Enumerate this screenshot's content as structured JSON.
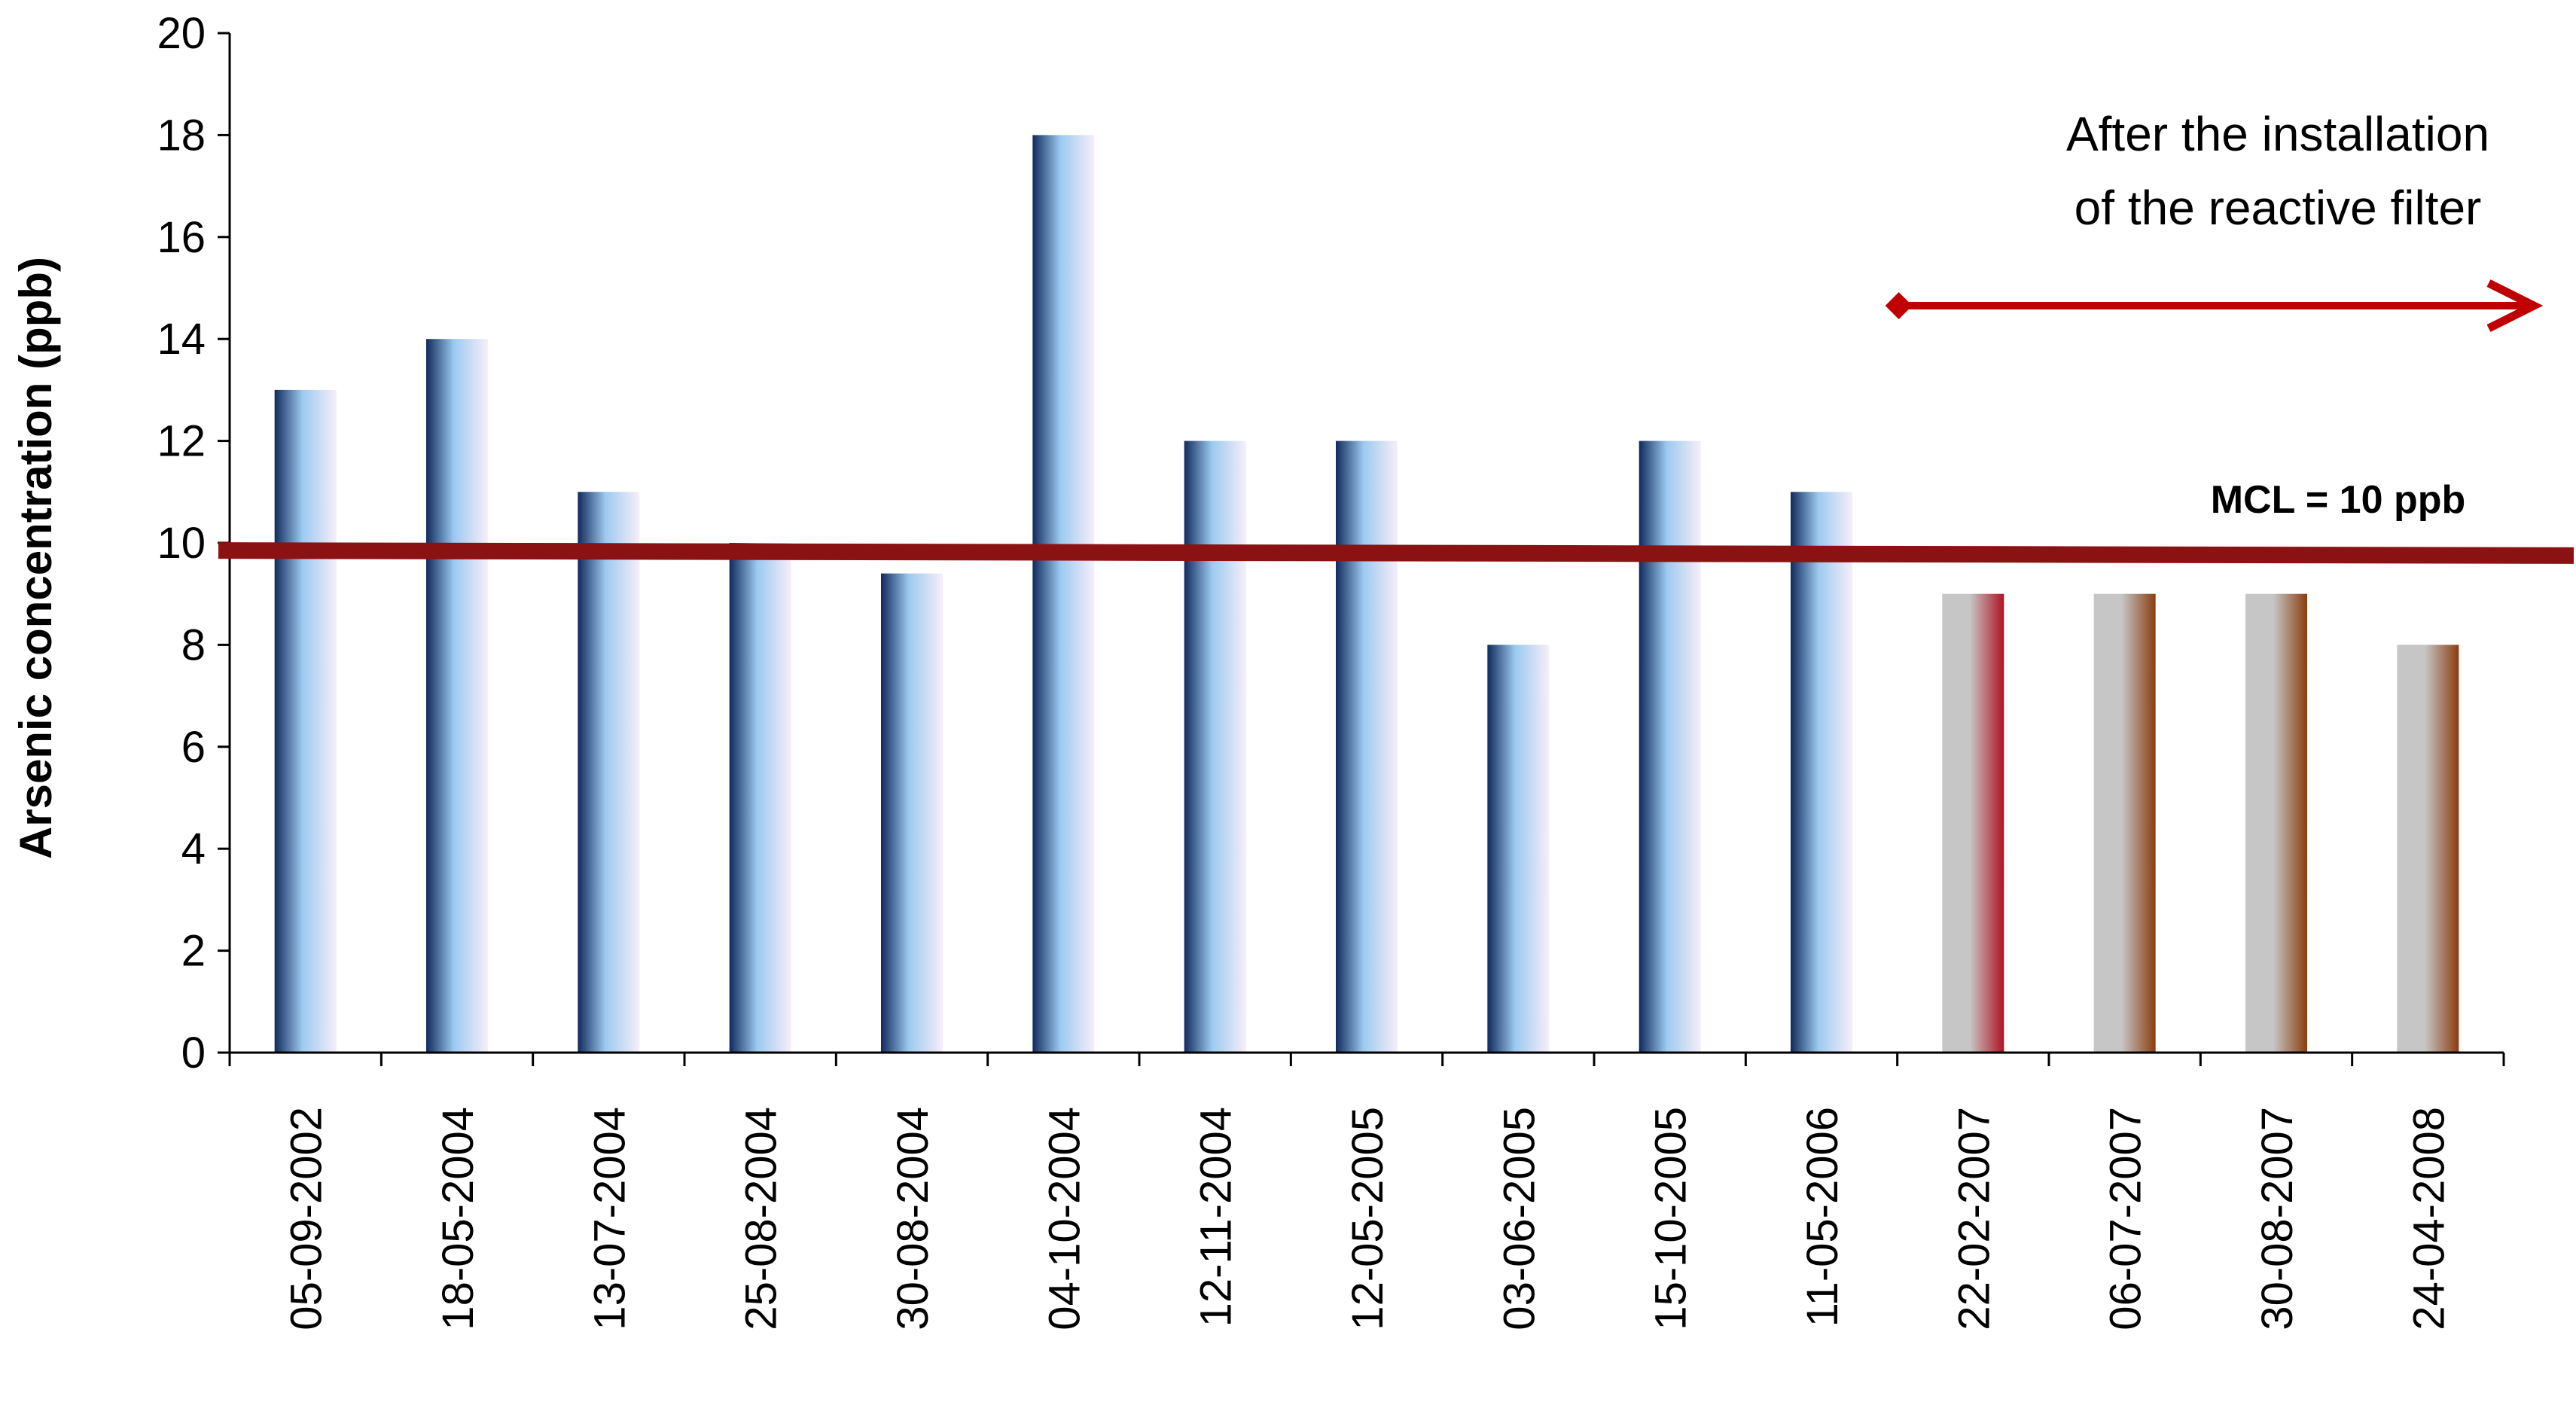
{
  "chart_data": {
    "type": "bar",
    "title": "",
    "xlabel": "",
    "ylabel": "Arsenic concentration  (ppb)",
    "ylim": [
      0,
      20
    ],
    "yticks": [
      0,
      2,
      4,
      6,
      8,
      10,
      12,
      14,
      16,
      18,
      20
    ],
    "grid": false,
    "categories": [
      "05-09-2002",
      "18-05-2004",
      "13-07-2004",
      "25-08-2004",
      "30-08-2004",
      "04-10-2004",
      "12-11-2004",
      "12-05-2005",
      "03-06-2005",
      "15-10-2005",
      "11-05-2006",
      "22-02-2007",
      "06-07-2007",
      "30-08-2007",
      "24-04-2008"
    ],
    "values": [
      13,
      14,
      11,
      10,
      9.4,
      18,
      12,
      12,
      8,
      12,
      11,
      9,
      9,
      9,
      8
    ],
    "bar_groups": [
      "before",
      "before",
      "before",
      "before",
      "before",
      "before",
      "before",
      "before",
      "before",
      "before",
      "before",
      "after",
      "after",
      "after",
      "after"
    ],
    "reference_line": {
      "label": "MCL = 10 ppb",
      "value_start": 9.85,
      "value_end": 9.75,
      "color": "#8b1212"
    },
    "annotation": {
      "lines": [
        "After  the installation",
        "of the reactive filter"
      ],
      "arrow_color": "#c00000",
      "arrow_from_category": 11
    },
    "colors": {
      "before_dark": "#102a5c",
      "before_mid": "#9ccaf0",
      "before_light": "#f7eef8",
      "after_light": "#c6c6c6",
      "after_red": "#b01222",
      "after_brown": "#8a3d10"
    }
  }
}
